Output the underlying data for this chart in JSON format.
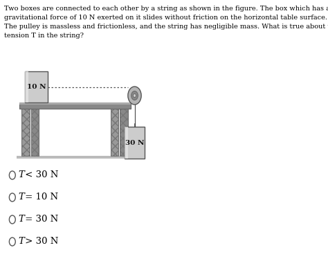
{
  "background_color": "#ffffff",
  "text_color": "#000000",
  "question_lines": [
    "Two boxes are connected to each other by a string as shown in the figure. The box which has a",
    "gravitational force of 10 N exerted on it slides without friction on the horizontal table surface.",
    "The pulley is massless and frictionless, and the string has negligible mass. What is true about the",
    "tension T in the string?"
  ],
  "options": [
    "T < 30 N",
    "T = 10 N",
    "T = 30 N",
    "T > 30 N"
  ],
  "box1_label": "10 N",
  "box2_label": "30 N",
  "table_surface_color": "#888888",
  "table_surface_dark": "#666666",
  "leg_color": "#999999",
  "leg_hatch_color": "#777777",
  "box_face": "#cccccc",
  "box_shine": "#e8e8e8",
  "box_edge": "#555555",
  "pulley_outer": "#aaaaaa",
  "pulley_inner": "#888888",
  "string_color": "#555555"
}
